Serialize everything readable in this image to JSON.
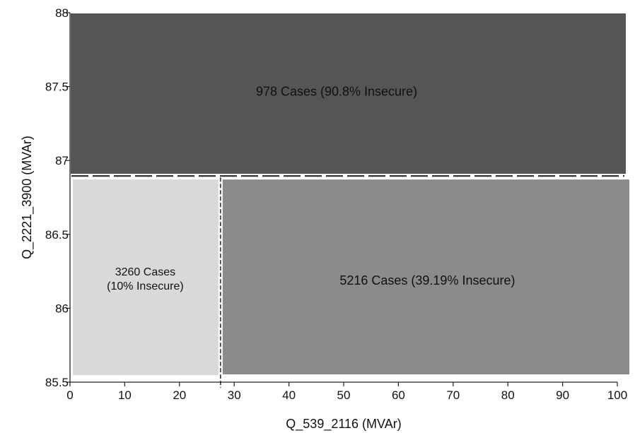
{
  "chart_data": {
    "type": "partition",
    "xlabel": "Q_539_2116 (MVAr)",
    "ylabel": "Q_2221_3900 (MVAr)",
    "xlim": [
      0,
      100
    ],
    "ylim": [
      85.5,
      88
    ],
    "x_ticks": [
      {
        "value": 0,
        "label": "0"
      },
      {
        "value": 10,
        "label": "10"
      },
      {
        "value": 20,
        "label": "20"
      },
      {
        "value": 30,
        "label": "30"
      },
      {
        "value": 40,
        "label": "40"
      },
      {
        "value": 50,
        "label": "50"
      },
      {
        "value": 60,
        "label": "60"
      },
      {
        "value": 70,
        "label": "70"
      },
      {
        "value": 80,
        "label": "80"
      },
      {
        "value": 90,
        "label": "90"
      },
      {
        "value": 100,
        "label": "100"
      }
    ],
    "y_ticks": [
      {
        "value": 85.5,
        "label": "85.5"
      },
      {
        "value": 86,
        "label": "86"
      },
      {
        "value": 86.5,
        "label": "86.5"
      },
      {
        "value": 87,
        "label": "87"
      },
      {
        "value": 87.5,
        "label": "87.5"
      },
      {
        "value": 88,
        "label": "88"
      }
    ],
    "thresholds": {
      "x": 27.5,
      "y": 86.9
    },
    "regions": [
      {
        "id": "top",
        "x_range": [
          0,
          100
        ],
        "y_range": [
          86.9,
          88
        ],
        "cases": 978,
        "insecure_pct": 90.8,
        "label_lines": [
          "978 Cases (90.8% Insecure)"
        ],
        "color": "#555555"
      },
      {
        "id": "bottom-left",
        "x_range": [
          0,
          27.5
        ],
        "y_range": [
          85.5,
          86.9
        ],
        "cases": 3260,
        "insecure_pct": 10,
        "label_lines": [
          "3260 Cases",
          "(10% Insecure)"
        ],
        "color": "#d9d9d9"
      },
      {
        "id": "bottom-right",
        "x_range": [
          27.5,
          100
        ],
        "y_range": [
          85.5,
          86.9
        ],
        "cases": 5216,
        "insecure_pct": 39.19,
        "label_lines": [
          "5216 Cases (39.19% Insecure)"
        ],
        "color": "#8b8b8b"
      }
    ]
  }
}
